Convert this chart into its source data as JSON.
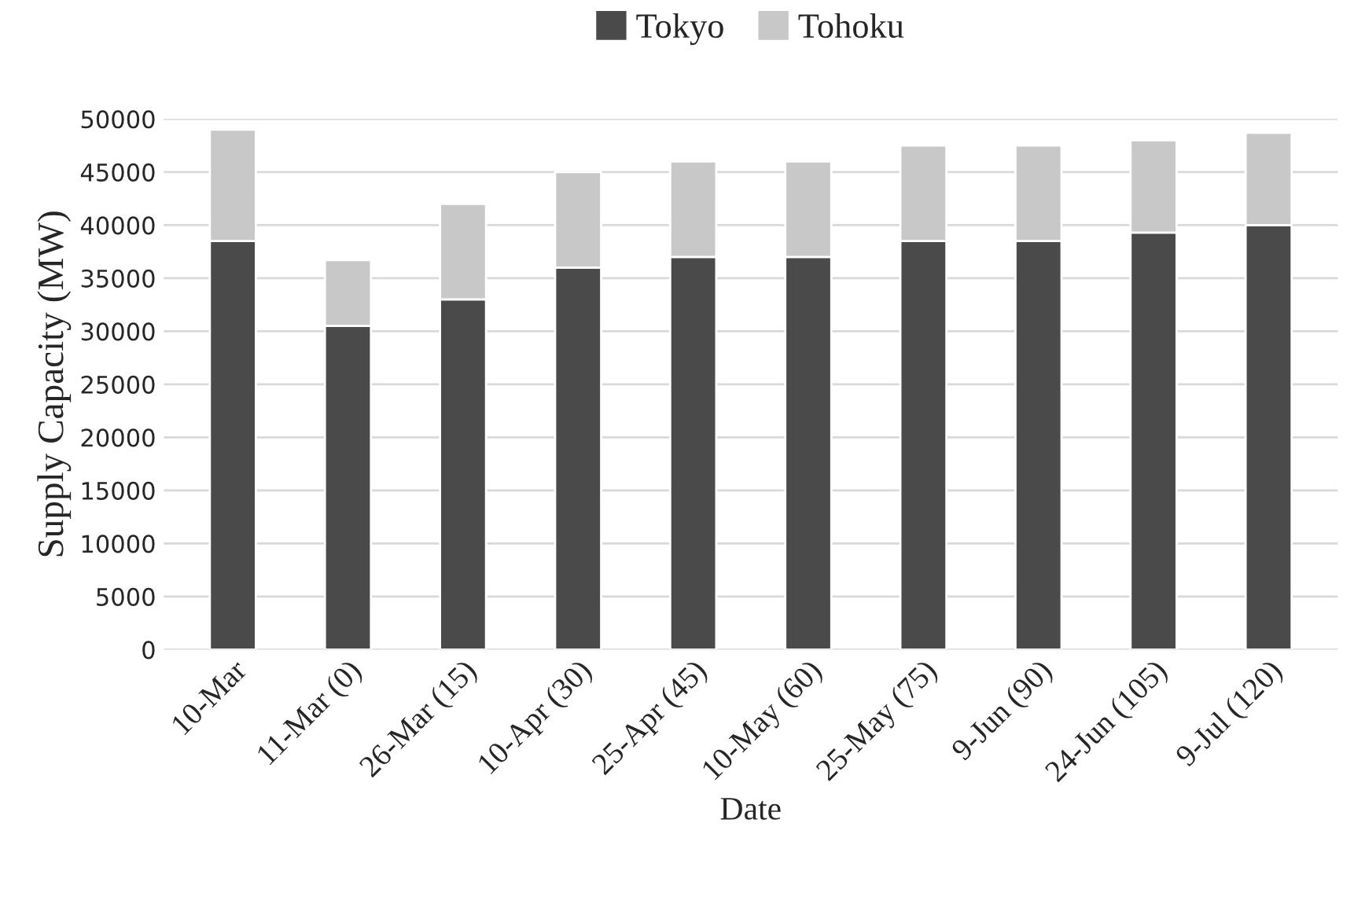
{
  "chart_data": {
    "type": "bar",
    "stacked": true,
    "xlabel": "Date",
    "ylabel": "Supply Capacity (MW)",
    "categories": [
      "10-Mar",
      "11-Mar (0)",
      "26-Mar (15)",
      "10-Apr (30)",
      "25-Apr (45)",
      "10-May (60)",
      "25-May (75)",
      "9-Jun (90)",
      "24-Jun (105)",
      "9-Jul (120)"
    ],
    "series": [
      {
        "name": "Tokyo",
        "color": "#4a4a4a",
        "values": [
          38500,
          30500,
          33000,
          36000,
          37000,
          37000,
          38500,
          38500,
          39300,
          40000
        ]
      },
      {
        "name": "Tohoku",
        "color": "#c8c8c8",
        "values": [
          10500,
          6200,
          9000,
          9000,
          9000,
          9000,
          9000,
          9000,
          8700,
          8700
        ]
      }
    ],
    "ylim": [
      0,
      50000
    ],
    "yticks": [
      0,
      5000,
      10000,
      15000,
      20000,
      25000,
      30000,
      35000,
      40000,
      45000,
      50000
    ],
    "grid": "y",
    "legend": "top"
  }
}
